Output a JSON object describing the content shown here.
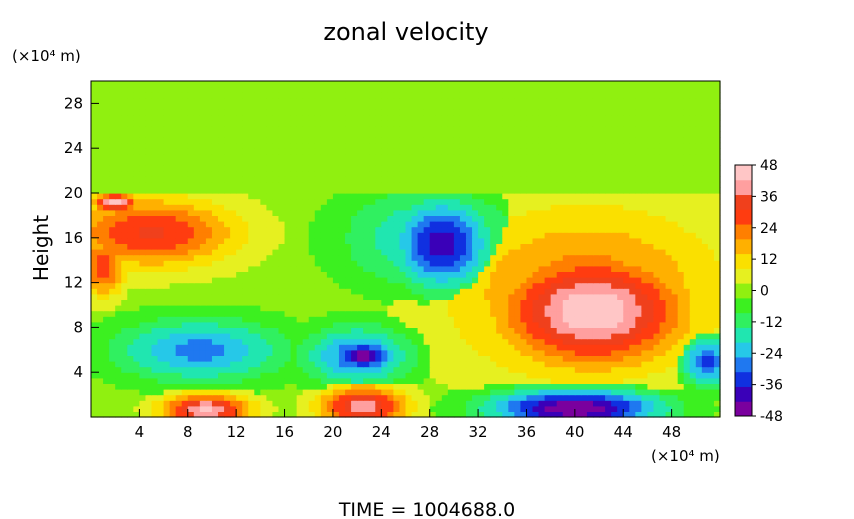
{
  "chart_data": {
    "type": "heatmap",
    "title": "zonal velocity",
    "ylabel": "Height",
    "x_unit": "(×10⁴ m)",
    "y_unit": "(×10⁴ m)",
    "footer": "TIME  =  1004688.0",
    "xlim": [
      0,
      52
    ],
    "ylim": [
      0,
      30
    ],
    "x_ticks": [
      4,
      8,
      12,
      16,
      20,
      24,
      28,
      32,
      36,
      40,
      44,
      48
    ],
    "y_ticks": [
      4,
      8,
      12,
      16,
      20,
      24,
      28
    ],
    "colorbar": {
      "min": -48,
      "max": 48,
      "ticks": [
        48,
        36,
        24,
        12,
        0,
        -12,
        -24,
        -36,
        -48
      ],
      "colors": [
        "#7a009e",
        "#3a00b8",
        "#1030e0",
        "#1f78f0",
        "#26c8e8",
        "#20e6b0",
        "#30f060",
        "#3cf020",
        "#90f010",
        "#e6f020",
        "#fae000",
        "#ffb000",
        "#ff7f00",
        "#ff3c10",
        "#f0401c",
        "#ff9f9f",
        "#ffc6c6"
      ]
    },
    "background_value": 0,
    "upper_layer_value": 1,
    "layer_top": 20.2,
    "regions": [
      {
        "x": 41.5,
        "y": 9.5,
        "rx": 8.5,
        "ry": 5.5,
        "v": 48
      },
      {
        "x": 41,
        "y": 11,
        "rx": 13,
        "ry": 9,
        "v": 24
      },
      {
        "x": 29,
        "y": 15.5,
        "rx": 4.5,
        "ry": 4.5,
        "v": -40
      },
      {
        "x": 28,
        "y": 16,
        "rx": 8,
        "ry": 5,
        "v": -22
      },
      {
        "x": 22.5,
        "y": 5.5,
        "rx": 2.8,
        "ry": 1.4,
        "v": -48
      },
      {
        "x": 22,
        "y": 5.5,
        "rx": 5,
        "ry": 3,
        "v": -30
      },
      {
        "x": 5,
        "y": 16.5,
        "rx": 8,
        "ry": 3.5,
        "v": 32
      },
      {
        "x": 9,
        "y": 6,
        "rx": 8,
        "ry": 3.2,
        "v": -28
      },
      {
        "x": 40,
        "y": 0.8,
        "rx": 8,
        "ry": 2,
        "v": -48
      },
      {
        "x": 9.5,
        "y": 0.7,
        "rx": 4,
        "ry": 1.5,
        "v": 44
      },
      {
        "x": 22.5,
        "y": 1,
        "rx": 4,
        "ry": 2,
        "v": 40
      },
      {
        "x": 1,
        "y": 13.5,
        "rx": 2,
        "ry": 3,
        "v": 30
      },
      {
        "x": 2,
        "y": 19.2,
        "rx": 2,
        "ry": 0.9,
        "v": 46
      },
      {
        "x": 51,
        "y": 5,
        "rx": 2.5,
        "ry": 2.5,
        "v": -32
      }
    ]
  }
}
